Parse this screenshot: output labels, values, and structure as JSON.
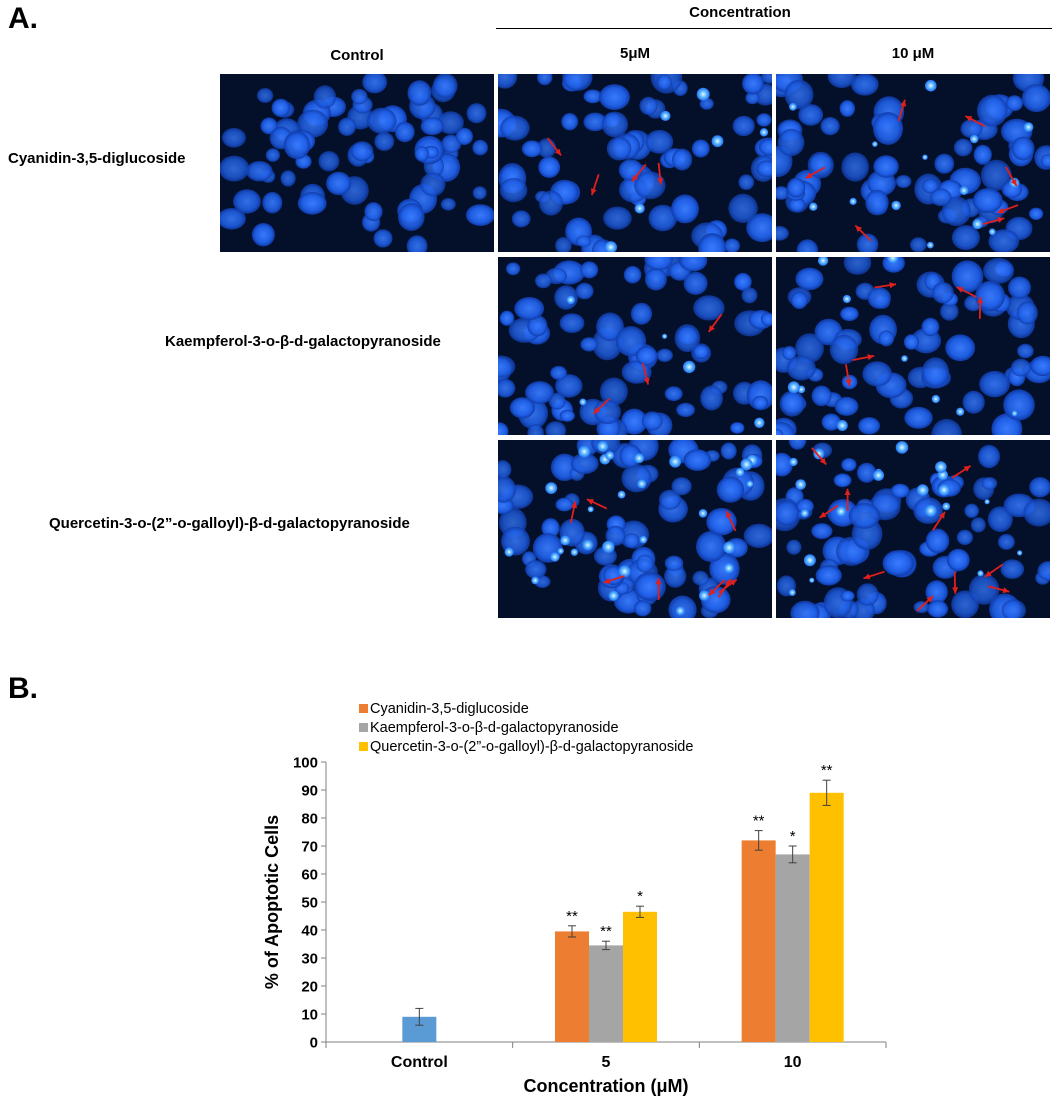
{
  "panel_a": {
    "letter": "A.",
    "header_concentration": "Concentration",
    "col_control": "Control",
    "col_5": "5μM",
    "col_10": "10 μM",
    "rows": [
      "Cyanidin-3,5-diglucoside",
      "Kaempferol-3-o-β-d-galactopyranoside",
      "Quercetin-3-o-(2”-o-galloyl)-β-d-galactopyranoside"
    ],
    "colors": {
      "background": "#04102a",
      "nucleus": "#1f5fe6",
      "bright_nucleus": "#5fb8ff",
      "arrow": "#e0201c"
    }
  },
  "panel_b": {
    "letter": "B."
  },
  "chart_data": {
    "type": "bar",
    "xlabel": "Concentration (μM)",
    "ylabel": "% of Apoptotic Cells",
    "ylim": [
      0,
      100
    ],
    "yticks": [
      0,
      10,
      20,
      30,
      40,
      50,
      60,
      70,
      80,
      90,
      100
    ],
    "grid": false,
    "legend_position": "top-left",
    "categories": [
      "Control",
      "5",
      "10"
    ],
    "control": {
      "value": 9,
      "error": 3,
      "color": "#5b9bd5"
    },
    "series": [
      {
        "name": "Cyanidin-3,5-diglucoside",
        "color": "#ed7d31",
        "values": [
          null,
          39.5,
          72
        ],
        "errors": [
          null,
          2,
          3.5
        ],
        "significance": [
          null,
          "**",
          "**"
        ]
      },
      {
        "name": "Kaempferol-3-o-β-d-galactopyranoside",
        "color": "#a5a5a5",
        "values": [
          null,
          34.5,
          67
        ],
        "errors": [
          null,
          1.5,
          3
        ],
        "significance": [
          null,
          "**",
          "*"
        ]
      },
      {
        "name": "Quercetin-3-o-(2”-o-galloyl)-β-d-galactopyranoside",
        "color": "#ffc000",
        "values": [
          null,
          46.5,
          89
        ],
        "errors": [
          null,
          2,
          4.5
        ],
        "significance": [
          null,
          "*",
          "**"
        ]
      }
    ]
  }
}
